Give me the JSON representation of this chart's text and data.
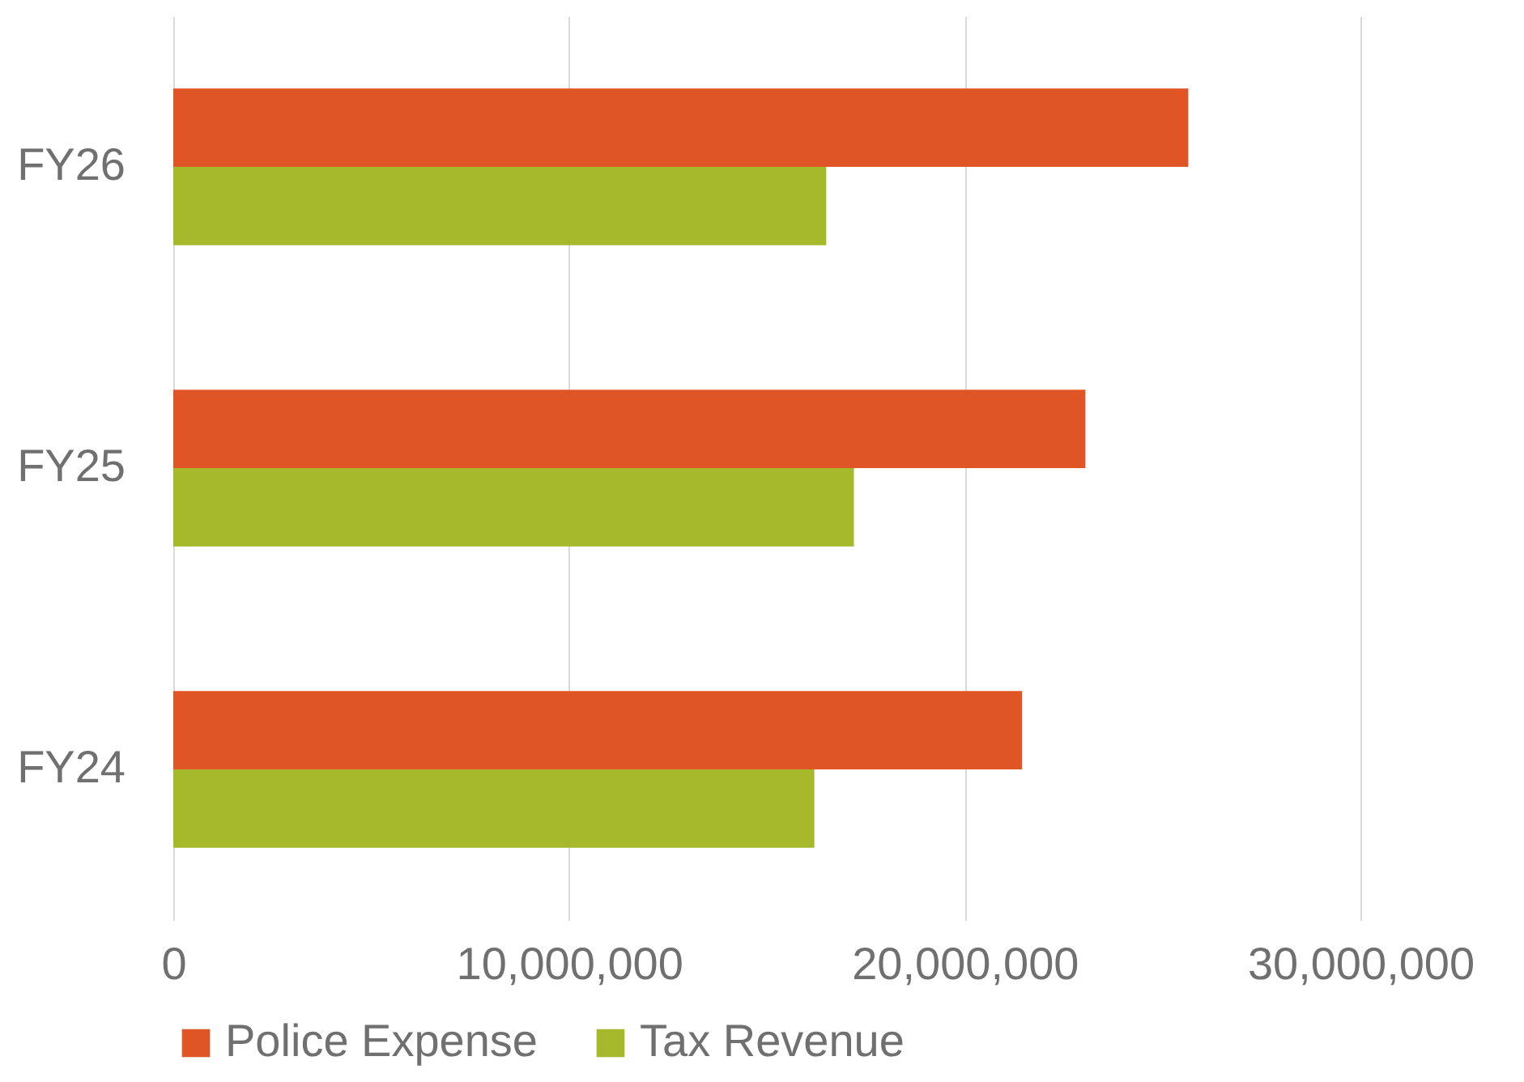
{
  "chart_data": {
    "type": "bar",
    "orientation": "horizontal",
    "categories": [
      "FY26",
      "FY25",
      "FY24"
    ],
    "series": [
      {
        "name": "Police Expense",
        "color": "#e05526",
        "values": [
          25650000,
          23050000,
          21450000
        ]
      },
      {
        "name": "Tax Revenue",
        "color": "#a5b92a",
        "values": [
          16500000,
          17200000,
          16200000
        ]
      }
    ],
    "xlim": [
      0,
      30000000
    ],
    "xticks": [
      0,
      {
        "value": 10000000,
        "label": "10,000,000"
      },
      {
        "value": 20000000,
        "label": "20,000,000"
      },
      {
        "value": 30000000,
        "label": "30,000,000"
      }
    ],
    "grid": "x",
    "legend": "bottom"
  }
}
